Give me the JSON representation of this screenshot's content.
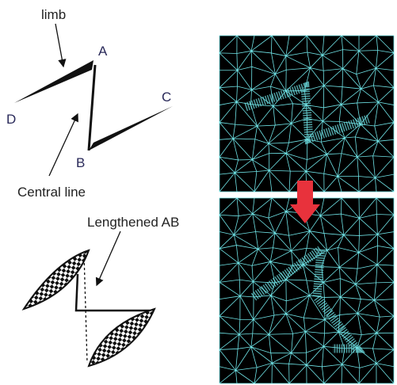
{
  "top_figure": {
    "limb_label": "limb",
    "point_a": "A",
    "point_b": "B",
    "point_c": "C",
    "point_d": "D",
    "central_line_label": "Central line"
  },
  "bottom_figure": {
    "lengthened_label": "Lengthened AB"
  }
}
